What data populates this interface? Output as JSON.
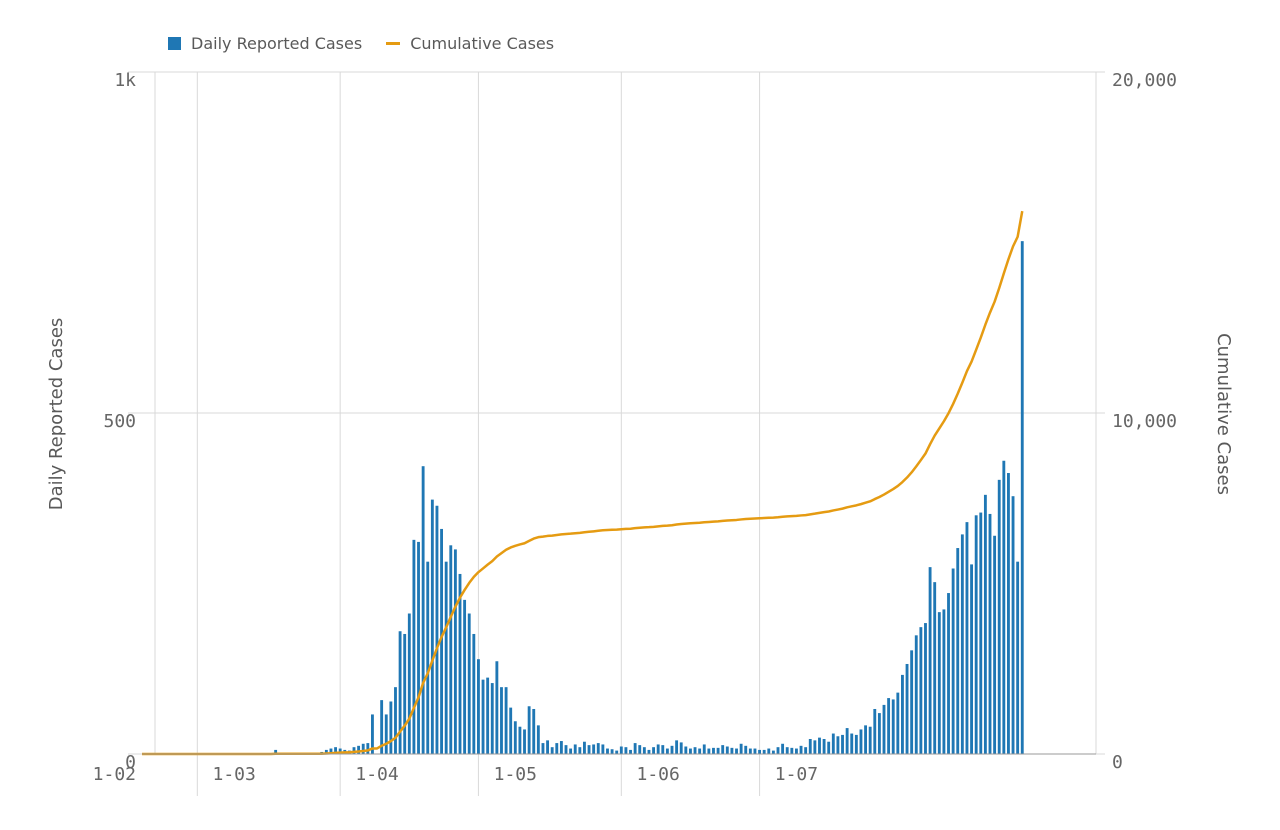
{
  "chart_data": {
    "type": "bar+line",
    "title": "",
    "legend": [
      "Daily Reported Cases",
      "Cumulative Cases"
    ],
    "legend_position": "top-left",
    "x_ticks": [
      "1-02",
      "1-03",
      "1-04",
      "1-05",
      "1-06",
      "1-07"
    ],
    "left_axis": {
      "label": "Daily Reported Cases",
      "ticks": [
        "0",
        "500",
        "1k"
      ],
      "range": [
        0,
        1000
      ]
    },
    "right_axis": {
      "label": "Cumulative Cases",
      "ticks": [
        "0",
        "10,000",
        "20,000"
      ],
      "range": [
        0,
        20000
      ]
    },
    "x_range_days": [
      -12,
      195
    ],
    "series": [
      {
        "name": "Daily Reported Cases",
        "kind": "bar",
        "color": "#1f77b4",
        "start_day": 0,
        "values": [
          0,
          0,
          0,
          0,
          0,
          0,
          0,
          0,
          0,
          0,
          0,
          0,
          0,
          0,
          0,
          0,
          0,
          6,
          0,
          0,
          0,
          0,
          0,
          0,
          0,
          0,
          0,
          3,
          6,
          8,
          10,
          8,
          6,
          5,
          10,
          12,
          15,
          16,
          58,
          0,
          79,
          58,
          77,
          98,
          180,
          176,
          206,
          314,
          311,
          422,
          282,
          373,
          364,
          330,
          282,
          306,
          300,
          264,
          226,
          206,
          176,
          139,
          109,
          112,
          104,
          136,
          98,
          98,
          68,
          48,
          40,
          36,
          70,
          66,
          42,
          16,
          20,
          10,
          16,
          19,
          13,
          8,
          14,
          10,
          18,
          13,
          14,
          16,
          14,
          8,
          7,
          5,
          11,
          10,
          6,
          16,
          13,
          10,
          6,
          10,
          14,
          13,
          8,
          12,
          20,
          17,
          11,
          8,
          10,
          8,
          14,
          8,
          9,
          9,
          13,
          11,
          9,
          8,
          15,
          12,
          8,
          8,
          6,
          6,
          8,
          5,
          10,
          15,
          10,
          9,
          8,
          12,
          10,
          22,
          20,
          24,
          22,
          18,
          30,
          26,
          28,
          38,
          30,
          28,
          36,
          42,
          40,
          66,
          60,
          72,
          82,
          80,
          90,
          116,
          132,
          152,
          174,
          186,
          192,
          274,
          252,
          208,
          212,
          236,
          272,
          302,
          322,
          340,
          278,
          350,
          354,
          380,
          352,
          320,
          402,
          430,
          412,
          378,
          282,
          752
        ]
      },
      {
        "name": "Cumulative Cases",
        "kind": "line",
        "color": "#e59b12"
      }
    ]
  }
}
